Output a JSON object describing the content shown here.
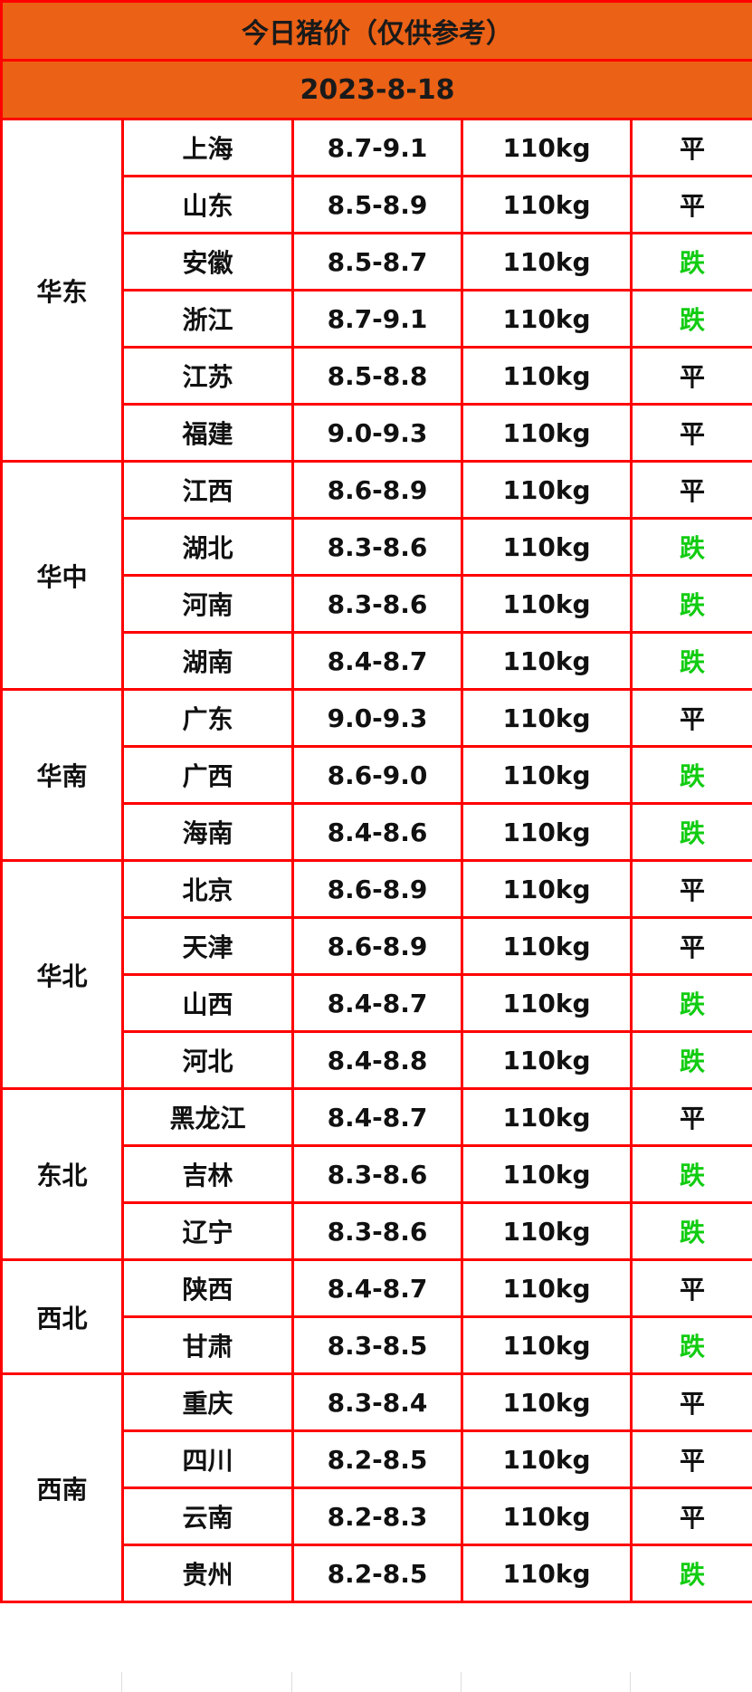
{
  "header": {
    "title": "今日猪价（仅供参考）",
    "date": "2023-8-18"
  },
  "colors": {
    "header_bg": "#eb6115",
    "border": "#ff0000",
    "down": "#11cc11",
    "flat": "#111111"
  },
  "regions": [
    {
      "name": "华东",
      "rows": [
        {
          "province": "上海",
          "price": "8.7-9.1",
          "weight": "110kg",
          "trend": "平"
        },
        {
          "province": "山东",
          "price": "8.5-8.9",
          "weight": "110kg",
          "trend": "平"
        },
        {
          "province": "安徽",
          "price": "8.5-8.7",
          "weight": "110kg",
          "trend": "跌"
        },
        {
          "province": "浙江",
          "price": "8.7-9.1",
          "weight": "110kg",
          "trend": "跌"
        },
        {
          "province": "江苏",
          "price": "8.5-8.8",
          "weight": "110kg",
          "trend": "平"
        },
        {
          "province": "福建",
          "price": "9.0-9.3",
          "weight": "110kg",
          "trend": "平"
        }
      ]
    },
    {
      "name": "华中",
      "rows": [
        {
          "province": "江西",
          "price": "8.6-8.9",
          "weight": "110kg",
          "trend": "平"
        },
        {
          "province": "湖北",
          "price": "8.3-8.6",
          "weight": "110kg",
          "trend": "跌"
        },
        {
          "province": "河南",
          "price": "8.3-8.6",
          "weight": "110kg",
          "trend": "跌"
        },
        {
          "province": "湖南",
          "price": "8.4-8.7",
          "weight": "110kg",
          "trend": "跌"
        }
      ]
    },
    {
      "name": "华南",
      "rows": [
        {
          "province": "广东",
          "price": "9.0-9.3",
          "weight": "110kg",
          "trend": "平"
        },
        {
          "province": "广西",
          "price": "8.6-9.0",
          "weight": "110kg",
          "trend": "跌"
        },
        {
          "province": "海南",
          "price": "8.4-8.6",
          "weight": "110kg",
          "trend": "跌"
        }
      ]
    },
    {
      "name": "华北",
      "rows": [
        {
          "province": "北京",
          "price": "8.6-8.9",
          "weight": "110kg",
          "trend": "平"
        },
        {
          "province": "天津",
          "price": "8.6-8.9",
          "weight": "110kg",
          "trend": "平"
        },
        {
          "province": "山西",
          "price": "8.4-8.7",
          "weight": "110kg",
          "trend": "跌"
        },
        {
          "province": "河北",
          "price": "8.4-8.8",
          "weight": "110kg",
          "trend": "跌"
        }
      ]
    },
    {
      "name": "东北",
      "rows": [
        {
          "province": "黑龙江",
          "price": "8.4-8.7",
          "weight": "110kg",
          "trend": "平"
        },
        {
          "province": "吉林",
          "price": "8.3-8.6",
          "weight": "110kg",
          "trend": "跌"
        },
        {
          "province": "辽宁",
          "price": "8.3-8.6",
          "weight": "110kg",
          "trend": "跌"
        }
      ]
    },
    {
      "name": "西北",
      "rows": [
        {
          "province": "陕西",
          "price": "8.4-8.7",
          "weight": "110kg",
          "trend": "平"
        },
        {
          "province": "甘肃",
          "price": "8.3-8.5",
          "weight": "110kg",
          "trend": "跌"
        }
      ]
    },
    {
      "name": "西南",
      "rows": [
        {
          "province": "重庆",
          "price": "8.3-8.4",
          "weight": "110kg",
          "trend": "平"
        },
        {
          "province": "四川",
          "price": "8.2-8.5",
          "weight": "110kg",
          "trend": "平"
        },
        {
          "province": "云南",
          "price": "8.2-8.3",
          "weight": "110kg",
          "trend": "平"
        },
        {
          "province": "贵州",
          "price": "8.2-8.5",
          "weight": "110kg",
          "trend": "跌"
        }
      ]
    }
  ]
}
